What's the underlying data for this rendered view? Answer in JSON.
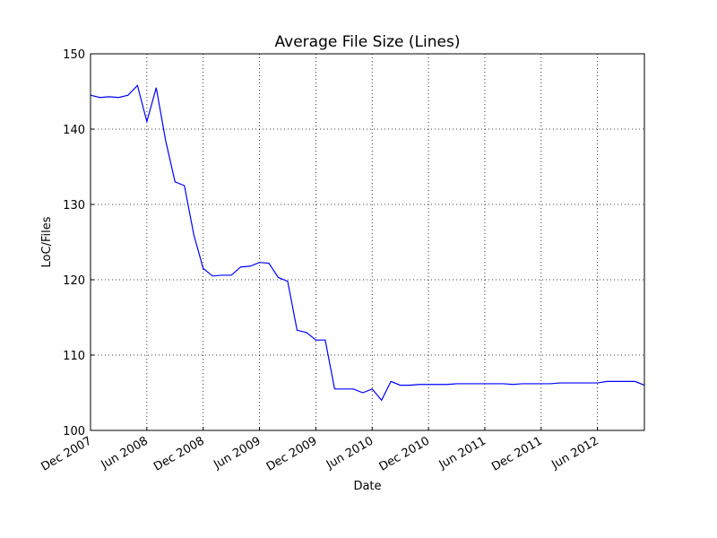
{
  "chart_data": {
    "type": "line",
    "title": "Average File Size (Lines)",
    "x_label": "Date",
    "y_label": "LoC/Files",
    "x": [
      "2007-12",
      "2008-01",
      "2008-02",
      "2008-03",
      "2008-04",
      "2008-05",
      "2008-06",
      "2008-07",
      "2008-08",
      "2008-09",
      "2008-10",
      "2008-11",
      "2008-12",
      "2009-01",
      "2009-02",
      "2009-03",
      "2009-04",
      "2009-05",
      "2009-06",
      "2009-07",
      "2009-08",
      "2009-09",
      "2009-10",
      "2009-11",
      "2009-12",
      "2010-01",
      "2010-02",
      "2010-03",
      "2010-04",
      "2010-05",
      "2010-06",
      "2010-07",
      "2010-08",
      "2010-09",
      "2010-10",
      "2010-11",
      "2010-12",
      "2011-01",
      "2011-02",
      "2011-03",
      "2011-04",
      "2011-05",
      "2011-06",
      "2011-07",
      "2011-08",
      "2011-09",
      "2011-10",
      "2011-11",
      "2011-12",
      "2012-01",
      "2012-02",
      "2012-03",
      "2012-04",
      "2012-05",
      "2012-06",
      "2012-07",
      "2012-08",
      "2012-09",
      "2012-10",
      "2012-11"
    ],
    "series": [
      {
        "name": "LoC/Files",
        "color": "#0000ff",
        "values": [
          144.5,
          144.2,
          144.3,
          144.2,
          144.5,
          145.8,
          141,
          145.5,
          138.5,
          133,
          132.5,
          126,
          121.5,
          120.5,
          120.6,
          120.6,
          121.7,
          121.8,
          122.3,
          122.2,
          120.3,
          119.8,
          113.3,
          113,
          112,
          112,
          105.5,
          105.5,
          105.5,
          105,
          105.5,
          104,
          106.5,
          106,
          106,
          106.1,
          106.1,
          106.1,
          106.1,
          106.2,
          106.2,
          106.2,
          106.2,
          106.2,
          106.2,
          106.1,
          106.2,
          106.2,
          106.2,
          106.2,
          106.3,
          106.3,
          106.3,
          106.3,
          106.3,
          106.5,
          106.5,
          106.5,
          106.5,
          106
        ]
      }
    ],
    "xlim": [
      "2007-12",
      "2012-11"
    ],
    "xticks": [
      {
        "value": "2007-12",
        "label": "Dec 2007"
      },
      {
        "value": "2008-06",
        "label": "Jun 2008"
      },
      {
        "value": "2008-12",
        "label": "Dec 2008"
      },
      {
        "value": "2009-06",
        "label": "Jun 2009"
      },
      {
        "value": "2009-12",
        "label": "Dec 2009"
      },
      {
        "value": "2010-06",
        "label": "Jun 2010"
      },
      {
        "value": "2010-12",
        "label": "Dec 2010"
      },
      {
        "value": "2011-06",
        "label": "Jun 2011"
      },
      {
        "value": "2011-12",
        "label": "Dec 2011"
      },
      {
        "value": "2012-06",
        "label": "Jun 2012"
      }
    ],
    "ylim": [
      100,
      150
    ],
    "yticks": [
      100,
      110,
      120,
      130,
      140,
      150
    ],
    "grid": true
  }
}
